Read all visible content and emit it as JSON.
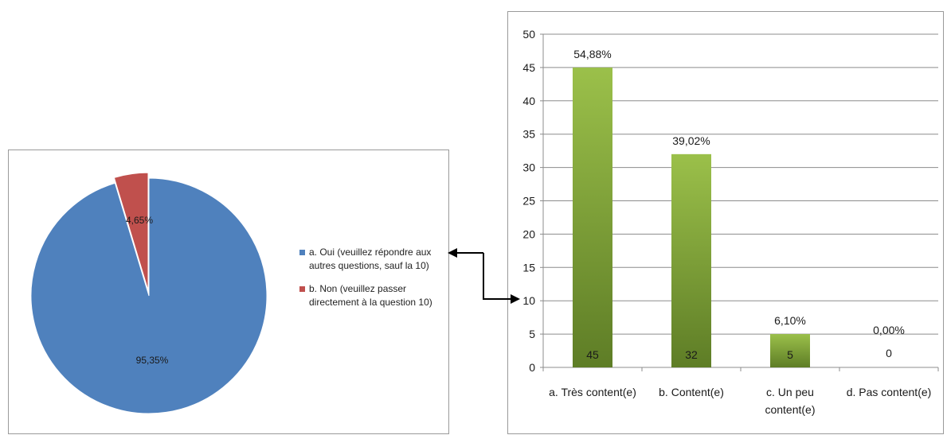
{
  "chart_data": [
    {
      "type": "pie",
      "slices": [
        {
          "label": "a. Oui (veuillez répondre aux autres questions, sauf la 10)",
          "value": 95.35,
          "display": "95,35%",
          "color": "#4f81bd"
        },
        {
          "label": "b. Non (veuillez passer directement à la question 10)",
          "value": 4.65,
          "display": "4,65%",
          "color": "#c0504d"
        }
      ],
      "legend_position": "right"
    },
    {
      "type": "bar",
      "categories": [
        "a. Très content(e)",
        "b. Content(e)",
        "c. Un peu content(e)",
        "d. Pas content(e)"
      ],
      "category_lines": [
        [
          "a. Très content(e)"
        ],
        [
          "b. Content(e)"
        ],
        [
          "c. Un peu",
          "content(e)"
        ],
        [
          "d. Pas content(e)"
        ]
      ],
      "values": [
        45,
        32,
        5,
        0
      ],
      "value_labels": [
        "45",
        "32",
        "5",
        "0"
      ],
      "percent_labels": [
        "54,88%",
        "39,02%",
        "6,10%",
        "0,00%"
      ],
      "ylim": [
        0,
        50
      ],
      "yticks": [
        "0",
        "5",
        "10",
        "15",
        "20",
        "25",
        "30",
        "35",
        "40",
        "45",
        "50"
      ],
      "grid": true,
      "bar_color_top": "#9bc04a",
      "bar_color_bottom": "#5e7d26"
    }
  ]
}
